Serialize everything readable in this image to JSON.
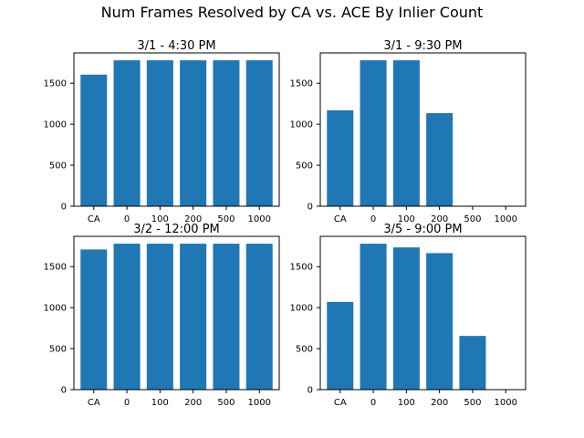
{
  "figure": {
    "suptitle": "Num Frames Resolved by CA vs. ACE By Inlier Count"
  },
  "chart_data": [
    {
      "type": "bar",
      "title": "3/1 - 4:30 PM",
      "categories": [
        "CA",
        "0",
        "100",
        "200",
        "500",
        "1000"
      ],
      "values": [
        1605,
        1780,
        1780,
        1780,
        1780,
        1780
      ],
      "ylim": [
        0,
        1870
      ],
      "yticks": [
        0,
        500,
        1000,
        1500
      ],
      "color": "#1f77b4",
      "xlabel": "",
      "ylabel": ""
    },
    {
      "type": "bar",
      "title": "3/1 - 9:30 PM",
      "categories": [
        "CA",
        "0",
        "100",
        "200",
        "500",
        "1000"
      ],
      "values": [
        1170,
        1780,
        1780,
        1135,
        0,
        0
      ],
      "ylim": [
        0,
        1870
      ],
      "yticks": [
        0,
        500,
        1000,
        1500
      ],
      "color": "#1f77b4",
      "xlabel": "",
      "ylabel": ""
    },
    {
      "type": "bar",
      "title": "3/2 - 12:00 PM",
      "categories": [
        "CA",
        "0",
        "100",
        "200",
        "500",
        "1000"
      ],
      "values": [
        1710,
        1780,
        1780,
        1780,
        1780,
        1780
      ],
      "ylim": [
        0,
        1870
      ],
      "yticks": [
        0,
        500,
        1000,
        1500
      ],
      "color": "#1f77b4",
      "xlabel": "",
      "ylabel": ""
    },
    {
      "type": "bar",
      "title": "3/5 - 9:00 PM",
      "categories": [
        "CA",
        "0",
        "100",
        "200",
        "500",
        "1000"
      ],
      "values": [
        1070,
        1780,
        1735,
        1665,
        655,
        0
      ],
      "ylim": [
        0,
        1870
      ],
      "yticks": [
        0,
        500,
        1000,
        1500
      ],
      "color": "#1f77b4",
      "xlabel": "",
      "ylabel": ""
    }
  ]
}
